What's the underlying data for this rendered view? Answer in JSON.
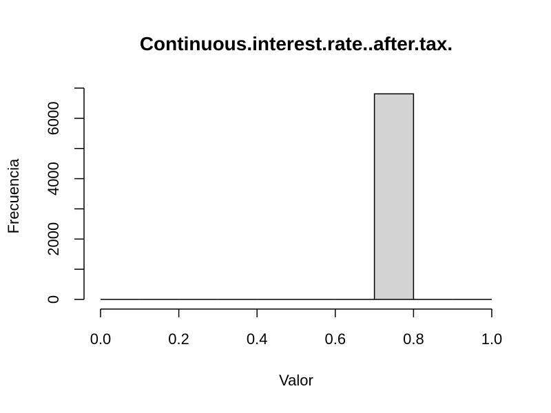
{
  "chart_data": {
    "type": "bar",
    "title": "Continuous.interest.rate..after.tax.",
    "xlabel": "Valor",
    "ylabel": "Frecuencia",
    "bins": [
      {
        "start": 0.0,
        "end": 0.1,
        "count": 0
      },
      {
        "start": 0.1,
        "end": 0.2,
        "count": 0
      },
      {
        "start": 0.2,
        "end": 0.3,
        "count": 0
      },
      {
        "start": 0.3,
        "end": 0.4,
        "count": 0
      },
      {
        "start": 0.4,
        "end": 0.5,
        "count": 0
      },
      {
        "start": 0.5,
        "end": 0.6,
        "count": 0
      },
      {
        "start": 0.6,
        "end": 0.7,
        "count": 0
      },
      {
        "start": 0.7,
        "end": 0.8,
        "count": 6810
      },
      {
        "start": 0.8,
        "end": 0.9,
        "count": 0
      },
      {
        "start": 0.9,
        "end": 1.0,
        "count": 0
      }
    ],
    "xlim": [
      0.0,
      1.0
    ],
    "ylim": [
      0,
      7000
    ],
    "x_ticks": [
      "0.0",
      "0.2",
      "0.4",
      "0.6",
      "0.8",
      "1.0"
    ],
    "y_ticks": [
      "0",
      "2000",
      "4000",
      "6000"
    ],
    "bar_color": "#d3d3d3",
    "grid": false,
    "legend": "none"
  }
}
